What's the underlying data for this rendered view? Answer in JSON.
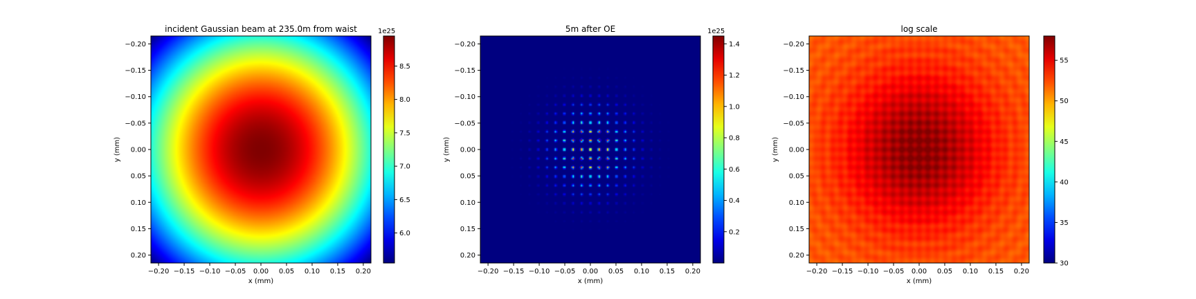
{
  "chart_data": [
    {
      "type": "heatmap",
      "title": "incident Gaussian beam at 235.0m from waist",
      "xlabel": "x (mm)",
      "ylabel": "y (mm)",
      "xlim": [
        -0.215,
        0.215
      ],
      "ylim": [
        -0.215,
        0.215
      ],
      "y_inverted": true,
      "xticks": [
        -0.2,
        -0.15,
        -0.1,
        -0.05,
        0.0,
        0.05,
        0.1,
        0.15,
        0.2
      ],
      "xtick_labels": [
        "−0.20",
        "−0.15",
        "−0.10",
        "−0.05",
        "0.00",
        "0.05",
        "0.10",
        "0.15",
        "0.20"
      ],
      "yticks": [
        -0.2,
        -0.15,
        -0.1,
        -0.05,
        0.0,
        0.05,
        0.1,
        0.15,
        0.2
      ],
      "ytick_labels": [
        "−0.20",
        "−0.15",
        "−0.10",
        "−0.05",
        "0.00",
        "0.05",
        "0.10",
        "0.15",
        "0.20"
      ],
      "colormap": "jet",
      "field": "gaussian",
      "gaussian_width_mm": 0.35,
      "colorbar": {
        "offset_text": "1e25",
        "vmin": 5.55,
        "vmax": 8.95,
        "ticks": [
          6.0,
          6.5,
          7.0,
          7.5,
          8.0,
          8.5
        ],
        "tick_labels": [
          "6.0",
          "6.5",
          "7.0",
          "7.5",
          "8.0",
          "8.5"
        ]
      }
    },
    {
      "type": "heatmap",
      "title": "5m after OE",
      "xlabel": "x (mm)",
      "ylabel": "y (mm)",
      "xlim": [
        -0.215,
        0.215
      ],
      "ylim": [
        -0.215,
        0.215
      ],
      "y_inverted": true,
      "xticks": [
        -0.2,
        -0.15,
        -0.1,
        -0.05,
        0.0,
        0.05,
        0.1,
        0.15,
        0.2
      ],
      "xtick_labels": [
        "−0.20",
        "−0.15",
        "−0.10",
        "−0.05",
        "0.00",
        "0.05",
        "0.10",
        "0.15",
        "0.20"
      ],
      "yticks": [
        -0.2,
        -0.15,
        -0.1,
        -0.05,
        0.0,
        0.05,
        0.1,
        0.15,
        0.2
      ],
      "ytick_labels": [
        "−0.20",
        "−0.15",
        "−0.10",
        "−0.05",
        "0.00",
        "0.05",
        "0.10",
        "0.15",
        "0.20"
      ],
      "colormap": "jet",
      "field": "spot-array",
      "spot_pitch_mm": 0.017,
      "spot_envelope_mm": 0.07,
      "colorbar": {
        "offset_text": "1e25",
        "vmin": 0.0,
        "vmax": 1.45,
        "ticks": [
          0.2,
          0.4,
          0.6,
          0.8,
          1.0,
          1.2,
          1.4
        ],
        "tick_labels": [
          "0.2",
          "0.4",
          "0.6",
          "0.8",
          "1.0",
          "1.2",
          "1.4"
        ]
      }
    },
    {
      "type": "heatmap",
      "title": "log scale",
      "xlabel": "x (mm)",
      "ylabel": "y (mm)",
      "xlim": [
        -0.215,
        0.215
      ],
      "ylim": [
        -0.215,
        0.215
      ],
      "y_inverted": true,
      "xticks": [
        -0.2,
        -0.15,
        -0.1,
        -0.05,
        0.0,
        0.05,
        0.1,
        0.15,
        0.2
      ],
      "xtick_labels": [
        "−0.20",
        "−0.15",
        "−0.10",
        "−0.05",
        "0.00",
        "0.05",
        "0.10",
        "0.15",
        "0.20"
      ],
      "yticks": [
        -0.2,
        -0.15,
        -0.1,
        -0.05,
        0.0,
        0.05,
        0.1,
        0.15,
        0.2
      ],
      "ytick_labels": [
        "−0.20",
        "−0.15",
        "−0.10",
        "−0.05",
        "0.00",
        "0.05",
        "0.10",
        "0.15",
        "0.20"
      ],
      "colormap": "jet",
      "field": "log-spot-array",
      "spot_pitch_mm": 0.017,
      "colorbar": {
        "offset_text": "",
        "vmin": 30,
        "vmax": 58,
        "ticks": [
          30,
          35,
          40,
          45,
          50,
          55
        ],
        "tick_labels": [
          "30",
          "35",
          "40",
          "45",
          "50",
          "55"
        ]
      }
    }
  ]
}
